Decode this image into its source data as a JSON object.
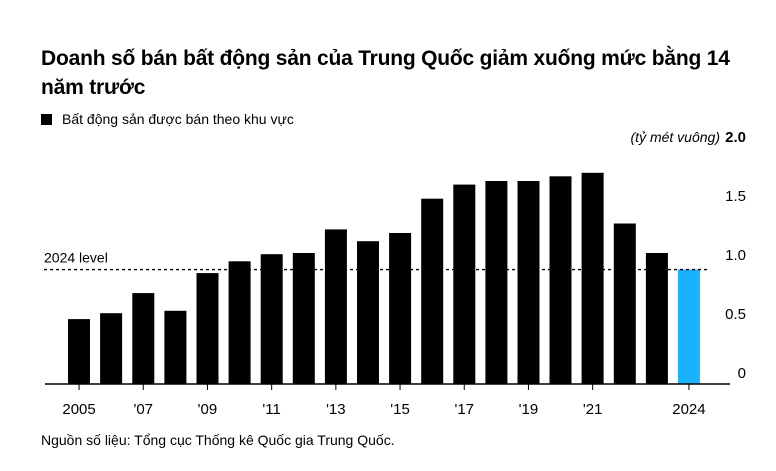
{
  "title": "Doanh số bán bất động sản của Trung Quốc giảm xuống mức bằng 14 năm trước",
  "legend": {
    "label": "Bất động sản được bán theo khu vực"
  },
  "source": "Nguồn số liệu: Tổng cục Thống kê Quốc gia Trung Quốc.",
  "colors": {
    "bar": "#000000",
    "highlight": "#1ab1ff",
    "axis": "#000000"
  },
  "chart_data": {
    "type": "bar",
    "unit_label": "(tỷ mét vuông)",
    "categories": [
      "2005",
      "2006",
      "2007",
      "2008",
      "2009",
      "2010",
      "2011",
      "2012",
      "2013",
      "2014",
      "2015",
      "2016",
      "2017",
      "2018",
      "2019",
      "2020",
      "2021",
      "2022",
      "2023",
      "2024"
    ],
    "x_tick_labels": [
      {
        "category": "2005",
        "label": "2005"
      },
      {
        "category": "2007",
        "label": "'07"
      },
      {
        "category": "2009",
        "label": "'09"
      },
      {
        "category": "2011",
        "label": "'11"
      },
      {
        "category": "2013",
        "label": "'13"
      },
      {
        "category": "2015",
        "label": "'15"
      },
      {
        "category": "2017",
        "label": "'17"
      },
      {
        "category": "2019",
        "label": "'19"
      },
      {
        "category": "2021",
        "label": "'21"
      },
      {
        "category": "2024",
        "label": "2024"
      }
    ],
    "series": [
      {
        "values": [
          0.55,
          0.6,
          0.77,
          0.62,
          0.94,
          1.04,
          1.1,
          1.11,
          1.31,
          1.21,
          1.28,
          1.57,
          1.69,
          1.72,
          1.72,
          1.76,
          1.79,
          1.36,
          1.11,
          0.97
        ]
      }
    ],
    "highlight_category": "2024",
    "reference_line": {
      "label": "2024 level",
      "value": 0.97
    },
    "y_ticks": [
      0,
      0.5,
      1.0,
      1.5,
      2.0
    ],
    "y_tick_labels": [
      "0",
      "0.5",
      "1.0",
      "1.5",
      "2.0"
    ],
    "ylim": [
      0,
      2.0
    ],
    "grid": false,
    "xlabel": "",
    "ylabel": ""
  }
}
